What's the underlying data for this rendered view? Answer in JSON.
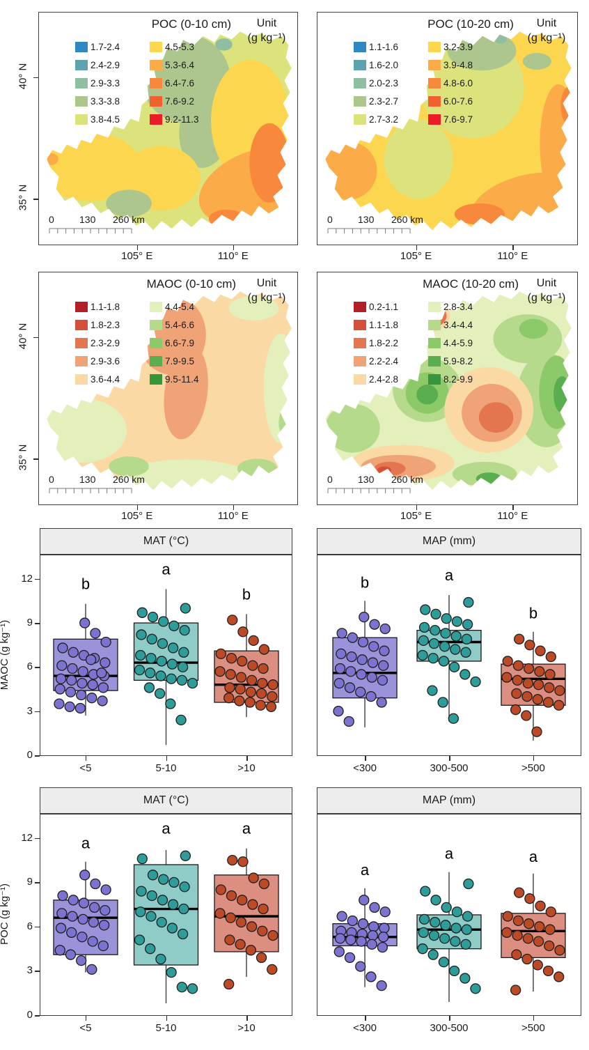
{
  "chart_data": {
    "type": [
      "choropleth-map",
      "choropleth-map",
      "choropleth-map",
      "choropleth-map",
      "boxplot",
      "boxplot",
      "boxplot",
      "boxplot"
    ],
    "maps": [
      {
        "title": "POC (0-10 cm)",
        "unit": [
          "Unit",
          "(g kg⁻¹)"
        ],
        "lat_ticks": [
          "40° N",
          "35° N"
        ],
        "lon_ticks": [
          "105° E",
          "110° E"
        ],
        "scalebar_labels": [
          "0",
          "130",
          "260 km"
        ],
        "base_color_index": 4,
        "legend": [
          {
            "range": "1.7-2.4",
            "color": "#2E87BE"
          },
          {
            "range": "2.4-2.9",
            "color": "#5FA2AE"
          },
          {
            "range": "2.9-3.3",
            "color": "#8FBFA0"
          },
          {
            "range": "3.3-3.8",
            "color": "#ADC68D"
          },
          {
            "range": "3.8-4.5",
            "color": "#DCE37C"
          },
          {
            "range": "4.5-5.3",
            "color": "#FCD64F"
          },
          {
            "range": "5.3-6.4",
            "color": "#FBAB48"
          },
          {
            "range": "6.4-7.6",
            "color": "#F8893C"
          },
          {
            "range": "7.6-9.2",
            "color": "#F1612F"
          },
          {
            "range": "9.2-11.3",
            "color": "#EA1C24"
          }
        ]
      },
      {
        "title": "POC (10-20 cm)",
        "unit": [
          "Unit",
          "(g kg⁻¹)"
        ],
        "lat_ticks": [
          "40° N",
          "35° N"
        ],
        "lon_ticks": [
          "105° E",
          "110° E"
        ],
        "scalebar_labels": [
          "0",
          "130",
          "260 km"
        ],
        "base_color_index": 5,
        "legend": [
          {
            "range": "1.1-1.6",
            "color": "#2E87BE"
          },
          {
            "range": "1.6-2.0",
            "color": "#5FA2AE"
          },
          {
            "range": "2.0-2.3",
            "color": "#8FBFA0"
          },
          {
            "range": "2.3-2.7",
            "color": "#ADC68D"
          },
          {
            "range": "2.7-3.2",
            "color": "#DCE37C"
          },
          {
            "range": "3.2-3.9",
            "color": "#FCD64F"
          },
          {
            "range": "3.9-4.8",
            "color": "#FBAB48"
          },
          {
            "range": "4.8-6.0",
            "color": "#F8893C"
          },
          {
            "range": "6.0-7.6",
            "color": "#F1612F"
          },
          {
            "range": "7.6-9.7",
            "color": "#EA1C24"
          }
        ]
      },
      {
        "title": "MAOC (0-10 cm)",
        "unit": [
          "Unit",
          "(g kg⁻¹)"
        ],
        "lat_ticks": [
          "40° N",
          "35° N"
        ],
        "lon_ticks": [
          "105° E",
          "110° E"
        ],
        "scalebar_labels": [
          "0",
          "130",
          "260 km"
        ],
        "base_color_index": 4,
        "legend": [
          {
            "range": "1.1-1.8",
            "color": "#B21E24"
          },
          {
            "range": "1.8-2.3",
            "color": "#D5503A"
          },
          {
            "range": "2.3-2.9",
            "color": "#E4764F"
          },
          {
            "range": "2.9-3.6",
            "color": "#F0A377"
          },
          {
            "range": "3.6-4.4",
            "color": "#FAD9A4"
          },
          {
            "range": "4.4-5.4",
            "color": "#E4F0BC"
          },
          {
            "range": "5.4-6.6",
            "color": "#B5DA8B"
          },
          {
            "range": "6.6-7.9",
            "color": "#8CC968"
          },
          {
            "range": "7.9-9.5",
            "color": "#5BAE50"
          },
          {
            "range": "9.5-11.4",
            "color": "#37963C"
          }
        ]
      },
      {
        "title": "MAOC (10-20 cm)",
        "unit": [
          "Unit",
          "(g kg⁻¹)"
        ],
        "lat_ticks": [
          "40° N",
          "35° N"
        ],
        "lon_ticks": [
          "105° E",
          "110° E"
        ],
        "scalebar_labels": [
          "0",
          "130",
          "260 km"
        ],
        "base_color_index": 5,
        "legend": [
          {
            "range": "0.2-1.1",
            "color": "#B21E24"
          },
          {
            "range": "1.1-1.8",
            "color": "#D5503A"
          },
          {
            "range": "1.8-2.2",
            "color": "#E4764F"
          },
          {
            "range": "2.2-2.4",
            "color": "#F0A377"
          },
          {
            "range": "2.4-2.8",
            "color": "#FAD9A4"
          },
          {
            "range": "2.8-3.4",
            "color": "#E4F0BC"
          },
          {
            "range": "3.4-4.4",
            "color": "#B5DA8B"
          },
          {
            "range": "4.4-5.9",
            "color": "#8CC968"
          },
          {
            "range": "5.9-8.2",
            "color": "#5BAE50"
          },
          {
            "range": "8.2-9.9",
            "color": "#37963C"
          }
        ]
      }
    ],
    "boxplot_ylim": [
      0,
      13.6
    ],
    "boxplot_yticks": [
      0,
      3,
      6,
      9,
      12
    ],
    "boxplot_panels": [
      {
        "header": "MAT (°C)",
        "ylabel": "MAOC (g kg⁻¹)",
        "show_y_ticks": true,
        "groups": [
          {
            "label": "<5",
            "letter": "b",
            "fill": "#9B93DA",
            "point_color": "#7C72D0",
            "whisker_low": 2.7,
            "q1": 4.4,
            "median": 5.4,
            "q3": 7.9,
            "whisker_high": 10.3,
            "letter_y": 11.3,
            "points": [
              9.0,
              8.3,
              7.7,
              7.3,
              7.0,
              6.8,
              6.6,
              6.3,
              6.1,
              5.9,
              5.7,
              5.5,
              5.4,
              5.2,
              5.1,
              4.9,
              4.8,
              4.6,
              4.5,
              4.3,
              4.1,
              3.9,
              3.7,
              3.5,
              3.3,
              3.2,
              6.5,
              5.6
            ]
          },
          {
            "label": "5-10",
            "letter": "a",
            "fill": "#8FCBC7",
            "point_color": "#2E9C98",
            "whisker_low": 0.7,
            "q1": 5.1,
            "median": 6.3,
            "q3": 9.0,
            "whisker_high": 11.3,
            "letter_y": 12.3,
            "points": [
              10.0,
              9.7,
              9.4,
              9.1,
              8.8,
              8.5,
              8.2,
              7.9,
              7.6,
              7.3,
              7.0,
              6.8,
              6.6,
              6.4,
              6.2,
              6.0,
              5.8,
              5.6,
              5.4,
              5.2,
              5.1,
              4.9,
              4.6,
              4.2,
              3.5,
              2.4
            ]
          },
          {
            "label": ">10",
            "letter": "b",
            "fill": "#DC8E80",
            "point_color": "#BC4A26",
            "whisker_low": 2.6,
            "q1": 3.6,
            "median": 4.8,
            "q3": 7.1,
            "whisker_high": 9.6,
            "letter_y": 10.6,
            "points": [
              9.2,
              8.4,
              7.8,
              7.2,
              6.9,
              6.6,
              6.4,
              6.1,
              5.9,
              5.7,
              5.5,
              5.3,
              5.1,
              4.9,
              4.8,
              4.6,
              4.5,
              4.3,
              4.2,
              4.0,
              3.9,
              3.7,
              3.6,
              3.4,
              3.3
            ]
          }
        ]
      },
      {
        "header": "MAP (mm)",
        "ylabel": "",
        "show_y_ticks": false,
        "groups": [
          {
            "label": "<300",
            "letter": "b",
            "fill": "#9B93DA",
            "point_color": "#7C72D0",
            "whisker_low": 1.9,
            "q1": 3.9,
            "median": 5.6,
            "q3": 8.0,
            "whisker_high": 10.5,
            "letter_y": 11.4,
            "points": [
              9.4,
              8.9,
              8.6,
              8.3,
              8.0,
              7.7,
              7.4,
              7.1,
              6.9,
              6.7,
              6.5,
              6.3,
              6.1,
              5.9,
              5.7,
              5.5,
              5.3,
              5.1,
              4.9,
              4.6,
              4.3,
              4.0,
              3.6,
              3.0,
              2.3
            ]
          },
          {
            "label": "300-500",
            "letter": "a",
            "fill": "#8FCBC7",
            "point_color": "#2E9C98",
            "whisker_low": 2.3,
            "q1": 6.4,
            "median": 7.7,
            "q3": 8.5,
            "whisker_high": 10.9,
            "letter_y": 11.9,
            "points": [
              10.4,
              9.9,
              9.6,
              9.3,
              9.1,
              8.9,
              8.7,
              8.5,
              8.3,
              8.1,
              7.9,
              7.8,
              7.6,
              7.4,
              7.2,
              7.0,
              6.8,
              6.6,
              6.4,
              6.0,
              5.5,
              5.0,
              4.4,
              3.6,
              2.5
            ]
          },
          {
            "label": ">500",
            "letter": "b",
            "fill": "#DC8E80",
            "point_color": "#BC4A26",
            "whisker_low": 1.0,
            "q1": 3.4,
            "median": 5.2,
            "q3": 6.2,
            "whisker_high": 8.4,
            "letter_y": 9.3,
            "points": [
              7.9,
              7.5,
              7.1,
              6.7,
              6.4,
              6.1,
              5.9,
              5.7,
              5.5,
              5.3,
              5.1,
              4.9,
              4.8,
              4.6,
              4.4,
              4.2,
              4.0,
              3.8,
              3.6,
              3.4,
              3.1,
              2.7,
              1.6
            ]
          }
        ]
      },
      {
        "header": "MAT (°C)",
        "ylabel": "POC (g kg⁻¹)",
        "show_y_ticks": true,
        "groups": [
          {
            "label": "<5",
            "letter": "a",
            "fill": "#9B93DA",
            "point_color": "#7C72D0",
            "whisker_low": 2.9,
            "q1": 4.1,
            "median": 6.6,
            "q3": 7.8,
            "whisker_high": 10.4,
            "letter_y": 11.3,
            "points": [
              9.5,
              8.9,
              8.5,
              8.1,
              7.8,
              7.6,
              7.3,
              7.1,
              6.9,
              6.7,
              6.5,
              6.3,
              6.1,
              5.9,
              5.6,
              5.3,
              5.0,
              4.7,
              4.4,
              4.1,
              3.7,
              3.1
            ]
          },
          {
            "label": "5-10",
            "letter": "a",
            "fill": "#8FCBC7",
            "point_color": "#2E9C98",
            "whisker_low": 0.8,
            "q1": 3.4,
            "median": 7.2,
            "q3": 10.2,
            "whisker_high": 11.2,
            "letter_y": 12.3,
            "points": [
              10.8,
              10.6,
              9.5,
              9.2,
              9.0,
              8.7,
              8.4,
              8.1,
              7.8,
              7.5,
              7.2,
              7.0,
              6.7,
              6.3,
              5.9,
              5.5,
              5.1,
              4.5,
              3.8,
              2.9,
              1.9,
              1.8
            ]
          },
          {
            "label": ">10",
            "letter": "a",
            "fill": "#DC8E80",
            "point_color": "#BC4A26",
            "whisker_low": 2.6,
            "q1": 4.3,
            "median": 6.7,
            "q3": 9.5,
            "whisker_high": 11.3,
            "letter_y": 12.3,
            "points": [
              10.5,
              10.4,
              9.3,
              8.9,
              8.5,
              8.1,
              7.8,
              7.5,
              7.2,
              6.9,
              6.6,
              6.3,
              6.0,
              5.7,
              5.4,
              5.1,
              4.8,
              4.4,
              3.9,
              3.1,
              2.1
            ]
          }
        ]
      },
      {
        "header": "MAP (mm)",
        "ylabel": "",
        "show_y_ticks": false,
        "groups": [
          {
            "label": "<300",
            "letter": "a",
            "fill": "#9B93DA",
            "point_color": "#7C72D0",
            "whisker_low": 1.9,
            "q1": 4.7,
            "median": 5.3,
            "q3": 6.2,
            "whisker_high": 8.6,
            "letter_y": 9.5,
            "points": [
              7.8,
              7.3,
              7.0,
              6.7,
              6.4,
              6.2,
              6.0,
              5.9,
              5.7,
              5.6,
              5.5,
              5.4,
              5.3,
              5.2,
              5.1,
              5.0,
              4.8,
              4.6,
              4.3,
              3.9,
              3.3,
              2.6,
              2.0
            ]
          },
          {
            "label": "300-500",
            "letter": "a",
            "fill": "#8FCBC7",
            "point_color": "#2E9C98",
            "whisker_low": 0.9,
            "q1": 4.5,
            "median": 5.8,
            "q3": 6.8,
            "whisker_high": 9.7,
            "letter_y": 10.6,
            "points": [
              8.9,
              8.4,
              7.8,
              7.3,
              7.0,
              6.7,
              6.5,
              6.3,
              6.1,
              5.9,
              5.8,
              5.6,
              5.4,
              5.2,
              5.0,
              4.8,
              4.5,
              4.1,
              3.6,
              3.0,
              2.5,
              1.8
            ]
          },
          {
            "label": ">500",
            "letter": "a",
            "fill": "#DC8E80",
            "point_color": "#BC4A26",
            "whisker_low": 1.6,
            "q1": 3.9,
            "median": 5.7,
            "q3": 6.9,
            "whisker_high": 9.6,
            "letter_y": 10.4,
            "points": [
              8.3,
              7.9,
              7.4,
              7.0,
              6.7,
              6.4,
              6.2,
              6.0,
              5.8,
              5.6,
              5.4,
              5.2,
              5.0,
              4.7,
              4.4,
              4.1,
              3.8,
              3.4,
              3.0,
              2.6,
              1.7
            ]
          }
        ]
      }
    ]
  }
}
